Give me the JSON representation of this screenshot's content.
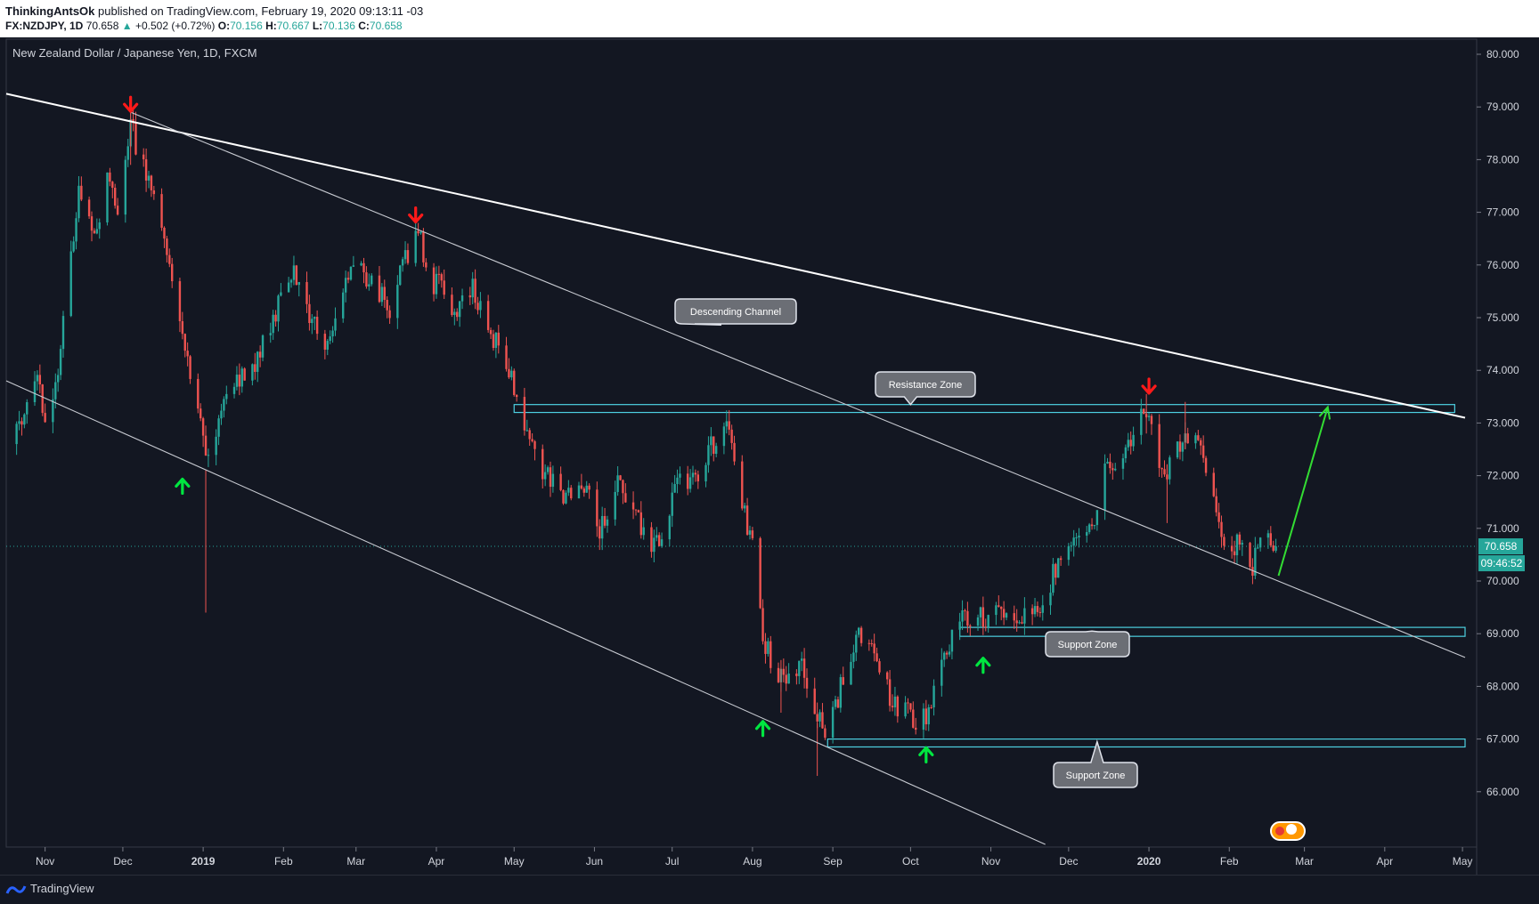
{
  "header": {
    "author": "ThinkingAntsOk",
    "published_text": "published on TradingView.com, February 19, 2020 09:13:11 -03",
    "symbol": "FX:NZDJPY, 1D",
    "price": "70.658",
    "change": "+0.502 (+0.72%)",
    "o_label": "O:",
    "o_value": "70.156",
    "h_label": "H:",
    "h_value": "70.667",
    "l_label": "L:",
    "l_value": "70.136",
    "c_label": "C:",
    "c_value": "70.658"
  },
  "footer": {
    "brand": "TradingView"
  },
  "chart_data": {
    "type": "candlestick",
    "title": "New Zealand Dollar / Japanese Yen, 1D, FXCM",
    "ylim": [
      65.0,
      80.4
    ],
    "y_ticks": [
      "80.000",
      "79.000",
      "78.000",
      "77.000",
      "76.000",
      "75.000",
      "74.000",
      "73.000",
      "72.000",
      "71.000",
      "70.000",
      "69.000",
      "68.000",
      "67.000",
      "66.000"
    ],
    "x_labels": [
      "Nov",
      "Dec",
      "2019",
      "Feb",
      "Mar",
      "Apr",
      "May",
      "Jun",
      "Jul",
      "Aug",
      "Sep",
      "Oct",
      "Nov",
      "Dec",
      "2020",
      "Feb",
      "Mar",
      "Apr",
      "May"
    ],
    "last_price": "70.658",
    "countdown": "09:46:52",
    "price_path": [
      {
        "date": "2018-10-20",
        "price": 72.6
      },
      {
        "date": "2018-10-28",
        "price": 73.9
      },
      {
        "date": "2018-11-03",
        "price": 72.8
      },
      {
        "date": "2018-11-10",
        "price": 75.8
      },
      {
        "date": "2018-11-14",
        "price": 77.3
      },
      {
        "date": "2018-11-20",
        "price": 76.6
      },
      {
        "date": "2018-11-25",
        "price": 77.6
      },
      {
        "date": "2018-11-30",
        "price": 77.0
      },
      {
        "date": "2018-12-04",
        "price": 78.7
      },
      {
        "date": "2018-12-08",
        "price": 77.9
      },
      {
        "date": "2018-12-14",
        "price": 77.5
      },
      {
        "date": "2018-12-20",
        "price": 75.5
      },
      {
        "date": "2018-12-28",
        "price": 73.6
      },
      {
        "date": "2019-01-03",
        "price": 72.2
      },
      {
        "date": "2019-01-10",
        "price": 73.6
      },
      {
        "date": "2019-01-20",
        "price": 74.0
      },
      {
        "date": "2019-01-30",
        "price": 75.2
      },
      {
        "date": "2019-02-05",
        "price": 75.8
      },
      {
        "date": "2019-02-12",
        "price": 75.0
      },
      {
        "date": "2019-02-16",
        "price": 74.2
      },
      {
        "date": "2019-02-22",
        "price": 75.3
      },
      {
        "date": "2019-03-01",
        "price": 76.2
      },
      {
        "date": "2019-03-07",
        "price": 75.6
      },
      {
        "date": "2019-03-14",
        "price": 75.2
      },
      {
        "date": "2019-03-20",
        "price": 76.1
      },
      {
        "date": "2019-03-26",
        "price": 76.6
      },
      {
        "date": "2019-03-29",
        "price": 75.4
      },
      {
        "date": "2019-04-03",
        "price": 75.8
      },
      {
        "date": "2019-04-08",
        "price": 75.1
      },
      {
        "date": "2019-04-15",
        "price": 75.6
      },
      {
        "date": "2019-04-20",
        "price": 74.9
      },
      {
        "date": "2019-04-27",
        "price": 74.3
      },
      {
        "date": "2019-05-01",
        "price": 73.7
      },
      {
        "date": "2019-05-06",
        "price": 72.9
      },
      {
        "date": "2019-05-12",
        "price": 72.1
      },
      {
        "date": "2019-05-20",
        "price": 71.6
      },
      {
        "date": "2019-05-28",
        "price": 71.9
      },
      {
        "date": "2019-06-03",
        "price": 70.9
      },
      {
        "date": "2019-06-10",
        "price": 71.9
      },
      {
        "date": "2019-06-17",
        "price": 71.2
      },
      {
        "date": "2019-06-24",
        "price": 70.6
      },
      {
        "date": "2019-06-30",
        "price": 71.3
      },
      {
        "date": "2019-07-03",
        "price": 72.0
      },
      {
        "date": "2019-07-10",
        "price": 71.9
      },
      {
        "date": "2019-07-15",
        "price": 72.5
      },
      {
        "date": "2019-07-22",
        "price": 72.9
      },
      {
        "date": "2019-07-28",
        "price": 71.6
      },
      {
        "date": "2019-08-01",
        "price": 70.6
      },
      {
        "date": "2019-08-05",
        "price": 69.0
      },
      {
        "date": "2019-08-09",
        "price": 68.3
      },
      {
        "date": "2019-08-14",
        "price": 68.0
      },
      {
        "date": "2019-08-20",
        "price": 68.5
      },
      {
        "date": "2019-08-25",
        "price": 67.6
      },
      {
        "date": "2019-08-30",
        "price": 67.0
      },
      {
        "date": "2019-09-05",
        "price": 68.2
      },
      {
        "date": "2019-09-12",
        "price": 69.0
      },
      {
        "date": "2019-09-18",
        "price": 68.6
      },
      {
        "date": "2019-09-24",
        "price": 67.6
      },
      {
        "date": "2019-09-30",
        "price": 67.6
      },
      {
        "date": "2019-10-03",
        "price": 67.2
      },
      {
        "date": "2019-10-08",
        "price": 67.5
      },
      {
        "date": "2019-10-14",
        "price": 68.5
      },
      {
        "date": "2019-10-20",
        "price": 69.3
      },
      {
        "date": "2019-10-28",
        "price": 69.3
      },
      {
        "date": "2019-11-05",
        "price": 69.5
      },
      {
        "date": "2019-11-12",
        "price": 69.2
      },
      {
        "date": "2019-11-20",
        "price": 69.6
      },
      {
        "date": "2019-11-28",
        "price": 70.4
      },
      {
        "date": "2019-12-05",
        "price": 71.0
      },
      {
        "date": "2019-12-11",
        "price": 71.2
      },
      {
        "date": "2019-12-16",
        "price": 72.3
      },
      {
        "date": "2019-12-22",
        "price": 72.3
      },
      {
        "date": "2019-12-27",
        "price": 72.9
      },
      {
        "date": "2019-12-30",
        "price": 73.3
      },
      {
        "date": "2020-01-03",
        "price": 72.6
      },
      {
        "date": "2020-01-07",
        "price": 71.9
      },
      {
        "date": "2020-01-12",
        "price": 72.6
      },
      {
        "date": "2020-01-16",
        "price": 72.8
      },
      {
        "date": "2020-01-20",
        "price": 72.7
      },
      {
        "date": "2020-01-24",
        "price": 72.0
      },
      {
        "date": "2020-01-28",
        "price": 71.1
      },
      {
        "date": "2020-02-01",
        "price": 70.5
      },
      {
        "date": "2020-02-05",
        "price": 70.9
      },
      {
        "date": "2020-02-09",
        "price": 70.1
      },
      {
        "date": "2020-02-13",
        "price": 70.8
      },
      {
        "date": "2020-02-19",
        "price": 70.658
      }
    ],
    "trendlines": [
      {
        "from": {
          "date": "2018-10-17",
          "price": 79.25
        },
        "to": {
          "date": "2020-05-02",
          "price": 73.1
        }
      },
      {
        "from": {
          "date": "2018-12-04",
          "price": 78.9
        },
        "to": {
          "date": "2020-05-02",
          "price": 68.55
        }
      },
      {
        "from": {
          "date": "2018-10-17",
          "price": 73.8
        },
        "to": {
          "date": "2019-11-22",
          "price": 65.0
        }
      }
    ],
    "zones": [
      {
        "label": "Resistance Zone",
        "from_date": "2019-05-01",
        "to_date": "2020-04-28",
        "low": 73.2,
        "high": 73.35
      },
      {
        "label": "Support Zone",
        "from_date": "2019-10-20",
        "to_date": "2020-05-02",
        "low": 68.95,
        "high": 69.12
      },
      {
        "label": "Support Zone",
        "from_date": "2019-08-30",
        "to_date": "2020-05-02",
        "low": 66.85,
        "high": 67.0
      }
    ],
    "annotations": [
      {
        "text": "Descending Channel",
        "date": "2019-07-20",
        "price": 74.86
      },
      {
        "text": "Resistance Zone",
        "date": "2019-10-01",
        "price": 73.35
      },
      {
        "text": "Support Zone",
        "date": "2019-12-10",
        "price": 69.05
      },
      {
        "text": "Support Zone",
        "date": "2019-12-12",
        "price": 66.95
      }
    ],
    "markers": [
      {
        "type": "down",
        "date": "2018-12-04",
        "price": 79.05
      },
      {
        "type": "down",
        "date": "2019-03-24",
        "price": 76.95
      },
      {
        "type": "down",
        "date": "2020-01-01",
        "price": 73.7
      },
      {
        "type": "up",
        "date": "2018-12-24",
        "price": 71.8
      },
      {
        "type": "up",
        "date": "2019-08-05",
        "price": 67.2
      },
      {
        "type": "up",
        "date": "2019-10-07",
        "price": 66.7
      },
      {
        "type": "up",
        "date": "2019-10-29",
        "price": 68.4
      }
    ],
    "projection": {
      "from": {
        "date": "2020-02-20",
        "price": 70.1
      },
      "to": {
        "date": "2020-03-10",
        "price": 73.3
      }
    },
    "colors": {
      "up": "#26a69a",
      "down": "#ef5350",
      "line": "#d1d4dc",
      "zone": "#4dd0e1",
      "marker_up": "#00e640",
      "marker_down": "#ff1a1a",
      "projection": "#33dd33",
      "background": "#131722"
    }
  }
}
